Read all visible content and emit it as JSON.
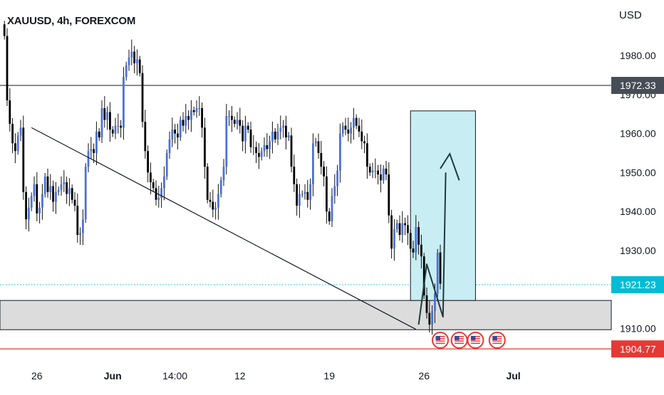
{
  "header": {
    "symbol": "XAUUSD, 4h, FOREXCOM",
    "currency": "USD"
  },
  "colors": {
    "bull_body": "#4a72d8",
    "bear_body": "#000000",
    "wick": "#111111",
    "price_line": "#00bcd4",
    "price_badge": "#00bcd4",
    "target_box_fill": "#c8eef3",
    "target_box_stroke": "#131722",
    "zone_fill": "#dcdcdc",
    "stop_line": "#e53935",
    "stop_badge": "#e53935",
    "resistance_badge": "#474d57",
    "event_flag": "#e53935"
  },
  "chart_data": {
    "type": "candlestick",
    "title": "XAUUSD, 4h, FOREXCOM",
    "ylabel": "USD",
    "ylim": [
      1898,
      1994
    ],
    "y_ticks": [
      "1980.00",
      "1970.00",
      "1960.00",
      "1950.00",
      "1940.00",
      "1930.00",
      "1920.00",
      "1910.00"
    ],
    "y_tick_values": [
      1980,
      1970,
      1960,
      1950,
      1940,
      1930,
      1920,
      1910
    ],
    "x_ticks": [
      "26",
      "Jun",
      "14:00",
      "12",
      "19",
      "26",
      "Jul"
    ],
    "x_tick_bars": [
      12,
      40,
      63,
      87,
      120,
      155,
      188
    ],
    "price_labels": {
      "resistance": "1972.33",
      "current": "1921.23",
      "stop": "1904.77"
    },
    "levels": {
      "resistance": 1972.33,
      "current": 1921.23,
      "stop": 1904.77,
      "zone_top": 1917.2,
      "zone_bottom": 1909.7
    },
    "target_box": {
      "bar_start": 150,
      "bar_end": 174,
      "top": 1965.8,
      "bottom": 1917.2
    },
    "trendline": [
      {
        "bar": 10,
        "value": 1961.5
      },
      {
        "bar": 152,
        "value": 1909.8
      }
    ],
    "projection_path": [
      {
        "bar": 153,
        "value": 1911
      },
      {
        "bar": 156,
        "value": 1926.5
      },
      {
        "bar": 162,
        "value": 1913
      },
      {
        "bar": 163,
        "value": 1950
      }
    ],
    "projection_arrowhead": [
      {
        "bar": 161,
        "value": 1951
      },
      {
        "bar": 164.5,
        "value": 1954.8
      },
      {
        "bar": 168,
        "value": 1948
      }
    ],
    "event_flag_bars": [
      161,
      168,
      174,
      182
    ],
    "close": [
      1985,
      1968.5,
      1962.5,
      1957.5,
      1955.5,
      1959.5,
      1961.5,
      1945,
      1938,
      1941,
      1944,
      1947,
      1939.5,
      1941,
      1944.5,
      1949,
      1945,
      1946.5,
      1942.5,
      1945,
      1945.5,
      1947,
      1947.5,
      1944.5,
      1946,
      1943,
      1941.5,
      1934,
      1934.5,
      1938,
      1951.5,
      1955.5,
      1956,
      1955,
      1960.5,
      1959,
      1966.5,
      1963.5,
      1965.5,
      1961,
      1960,
      1962,
      1962,
      1961.5,
      1974.5,
      1977.5,
      1979.5,
      1981,
      1978,
      1979,
      1975.5,
      1963,
      1955.5,
      1950,
      1947.5,
      1946,
      1943,
      1943.5,
      1946,
      1949,
      1955,
      1958.5,
      1961,
      1960,
      1959,
      1963.5,
      1962,
      1964.5,
      1963.5,
      1966,
      1965.5,
      1966.5,
      1966.5,
      1961.5,
      1951.5,
      1943,
      1942.5,
      1940.5,
      1941,
      1944.5,
      1948,
      1951.5,
      1964.5,
      1964.5,
      1963.5,
      1962.5,
      1963.5,
      1962,
      1958,
      1962,
      1961,
      1956.5,
      1956.5,
      1955,
      1954,
      1955.5,
      1957,
      1956,
      1958,
      1960.5,
      1958.5,
      1960.5,
      1961.5,
      1962,
      1959,
      1959.5,
      1951.5,
      1947,
      1941.5,
      1944.5,
      1944.5,
      1945,
      1943,
      1947,
      1957.5,
      1958,
      1955,
      1951.5,
      1949,
      1940,
      1937.5,
      1944,
      1946.5,
      1950.5,
      1960,
      1962,
      1961,
      1960,
      1961.5,
      1964,
      1962,
      1960.5,
      1958,
      1957.5,
      1951.5,
      1950,
      1950.5,
      1950.5,
      1949.5,
      1948,
      1951,
      1949.5,
      1939,
      1930.5,
      1935.5,
      1937,
      1934,
      1937,
      1936.5,
      1934.5,
      1930.5,
      1929.5,
      1936,
      1931.5,
      1928.5,
      1918.5,
      1914,
      1911,
      1914.5,
      1919,
      1929.5,
      1921.5
    ]
  }
}
